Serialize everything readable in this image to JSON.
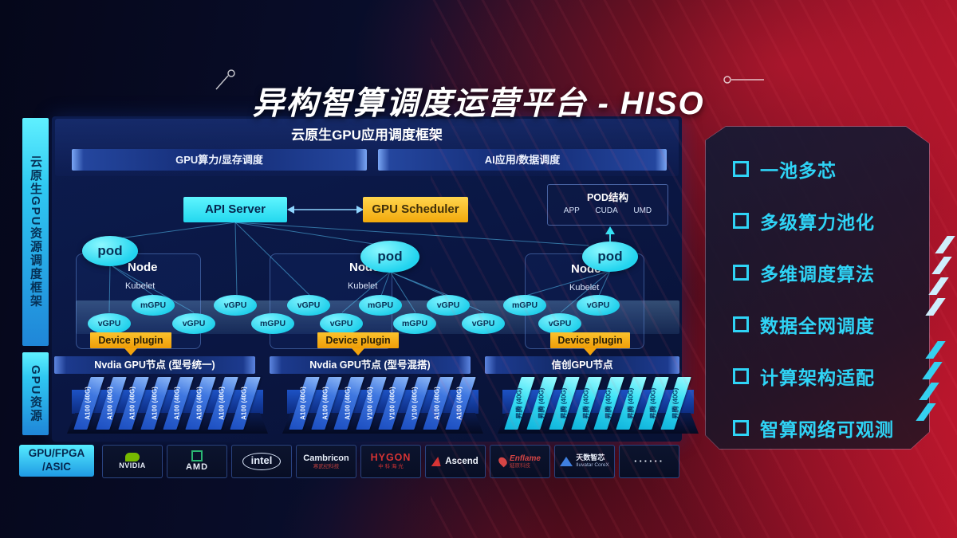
{
  "title": "异构智算调度运营平台 - HISO",
  "sidebar": {
    "bars": [
      "云原生GPU资源调度框架",
      "GPU资源"
    ]
  },
  "framework": {
    "title": "云原生GPU应用调度框架",
    "bars": [
      "GPU算力/显存调度",
      "AI应用/数据调度"
    ]
  },
  "scheduler": {
    "api_server": "API Server",
    "gpu_scheduler": "GPU Scheduler"
  },
  "pod_struct": {
    "title": "POD结构",
    "items": [
      "APP",
      "CUDA",
      "UMD"
    ]
  },
  "cluster_labels": {
    "pod": "pod",
    "node": "Node",
    "kubelet": "Kubelet",
    "device_plugin": "Device plugin"
  },
  "gpu_ellipses": [
    "vGPU",
    "mGPU",
    "vGPU",
    "vGPU",
    "mGPU",
    "vGPU",
    "vGPU",
    "mGPU",
    "mGPU",
    "vGPU",
    "vGPU",
    "mGPU",
    "vGPU",
    "vGPU"
  ],
  "gpu_nodes": [
    {
      "header": "Nvdia GPU节点 (型号统一)",
      "card_style": "blue",
      "cards": [
        "A100 (40G)",
        "A100 (40G)",
        "A100 (40G)",
        "A100 (40G)",
        "A100 (40G)",
        "A100 (40G)",
        "A100 (40G)",
        "A100 (40G)"
      ]
    },
    {
      "header": "Nvdia GPU节点 (型号混搭)",
      "card_style": "blue",
      "cards": [
        "A100 (40G)",
        "A100 (40G)",
        "A100 (40G)",
        "V100 (40G)",
        "V100 (40G)",
        "V100 (40G)",
        "A100 (40G)",
        "A100 (40G)"
      ]
    },
    {
      "header": "信创GPU节点",
      "card_style": "cyan",
      "cards": [
        "昇腾 (40G)",
        "昇腾 (40G)",
        "昇腾 (40G)",
        "昇腾 (40G)",
        "昇腾 (40G)",
        "昇腾 (40G)",
        "昇腾 (40G)",
        "昇腾 (40G)"
      ]
    }
  ],
  "hardware_row": {
    "label_line1": "GPU/FPGA",
    "label_line2": "/ASIC",
    "vendors": [
      {
        "id": "nvidia",
        "icon": "nvidia-eye-icon",
        "primary": "NVIDIA",
        "primary_color": "#e8eef8"
      },
      {
        "id": "amd",
        "icon": "amd-square-icon",
        "primary": "AMD",
        "primary_color": "#e8eef8"
      },
      {
        "id": "intel",
        "icon": "intel-oval-icon",
        "primary": "intel",
        "primary_color": "#e6eefc"
      },
      {
        "id": "cambricon",
        "primary": "Cambricon",
        "primary_color": "#e8eef8",
        "secondary": "寒武纪科技",
        "secondary_color": "#c04040"
      },
      {
        "id": "hygon",
        "primary": "HYGON",
        "primary_color": "#d63333",
        "secondary": "中 科 海 光",
        "secondary_color": "#d63333"
      },
      {
        "id": "ascend",
        "icon": "ascend-triangle-icon",
        "primary": "Ascend",
        "primary_color": "#eef2fa"
      },
      {
        "id": "enflame",
        "icon": "enflame-flame-icon",
        "primary": "Enflame",
        "primary_color": "#d64545",
        "secondary": "燧原科技",
        "secondary_color": "#b03838"
      },
      {
        "id": "iluvatar",
        "icon": "iluvatar-triangle-icon",
        "primary": "天数智芯",
        "primary_color": "#e8eef8",
        "secondary": "Iluvatar CoreX",
        "secondary_color": "#a8bce0"
      },
      {
        "id": "more",
        "primary": "······",
        "primary_color": "#e8eef8"
      }
    ]
  },
  "features": {
    "items": [
      "一池多芯",
      "多级算力池化",
      "多维调度算法",
      "数据全网调度",
      "计算架构适配",
      "智算网络可观测"
    ]
  },
  "colors": {
    "accent_cyan": "#2fd4f6",
    "accent_orange": "#f2a90c",
    "accent_red": "#b3152a",
    "panel_navy": "#0c1c4e"
  }
}
